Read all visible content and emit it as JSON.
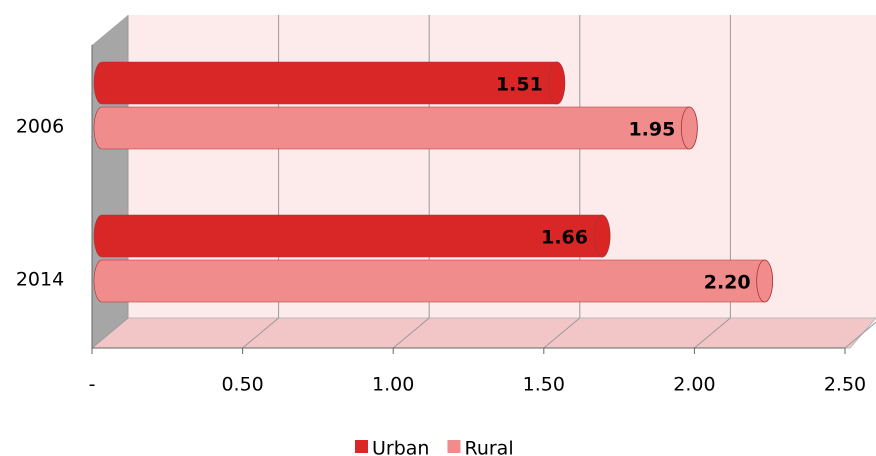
{
  "chart_data": {
    "type": "bar",
    "orientation": "horizontal",
    "categories": [
      "2006",
      "2014"
    ],
    "series": [
      {
        "name": "Urban",
        "color": "#d92626",
        "values": [
          1.51,
          1.66
        ],
        "value_labels": [
          "1.51",
          "1.66"
        ]
      },
      {
        "name": "Rural",
        "color": "#f08c8c",
        "values": [
          1.95,
          2.2
        ],
        "value_labels": [
          "1.95",
          "2.20"
        ]
      }
    ],
    "xlim": [
      0,
      2.5
    ],
    "xticks": [
      {
        "value": 0,
        "label": "-"
      },
      {
        "value": 0.5,
        "label": "0.50"
      },
      {
        "value": 1,
        "label": "1.00"
      },
      {
        "value": 1.5,
        "label": "1.50"
      },
      {
        "value": 2,
        "label": "2.00"
      },
      {
        "value": 2.5,
        "label": "2.50"
      }
    ],
    "grid": true,
    "legend": "bottom"
  }
}
